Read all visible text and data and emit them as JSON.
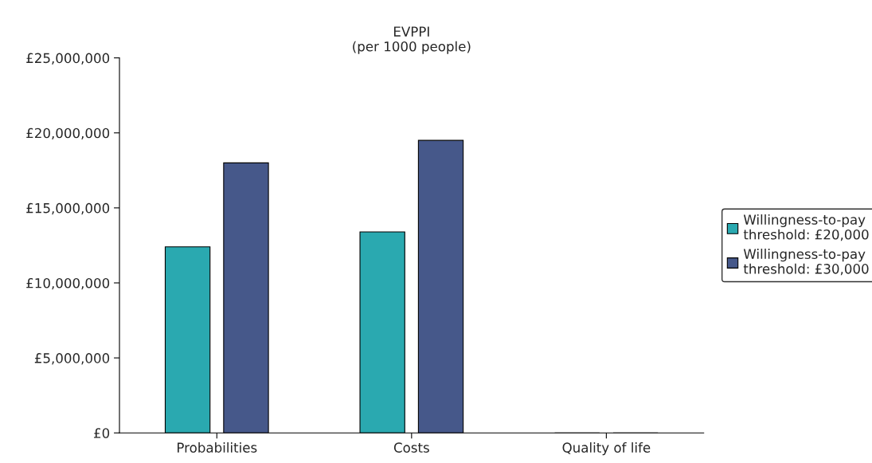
{
  "chart_data": {
    "type": "bar",
    "title": "EVPPI\n(per 1000 people)",
    "categories": [
      "Probabilities",
      "Costs",
      "Quality of life"
    ],
    "series": [
      {
        "name": "Willingness-to-pay\nthreshold: £20,000",
        "color": "#2aa9b0",
        "values": [
          12400000,
          13400000,
          0
        ]
      },
      {
        "name": "Willingness-to-pay\nthreshold: £30,000",
        "color": "#46588a",
        "values": [
          18000000,
          19500000,
          0
        ]
      }
    ],
    "ylim": [
      0,
      25000000
    ],
    "yticks": [
      {
        "value": 0,
        "label": "£0"
      },
      {
        "value": 5000000,
        "label": "£5,000,000"
      },
      {
        "value": 10000000,
        "label": "£10,000,000"
      },
      {
        "value": 15000000,
        "label": "£15,000,000"
      },
      {
        "value": 20000000,
        "label": "£20,000,000"
      },
      {
        "value": 25000000,
        "label": "£25,000,000"
      }
    ],
    "grid": false,
    "legend": "right"
  }
}
